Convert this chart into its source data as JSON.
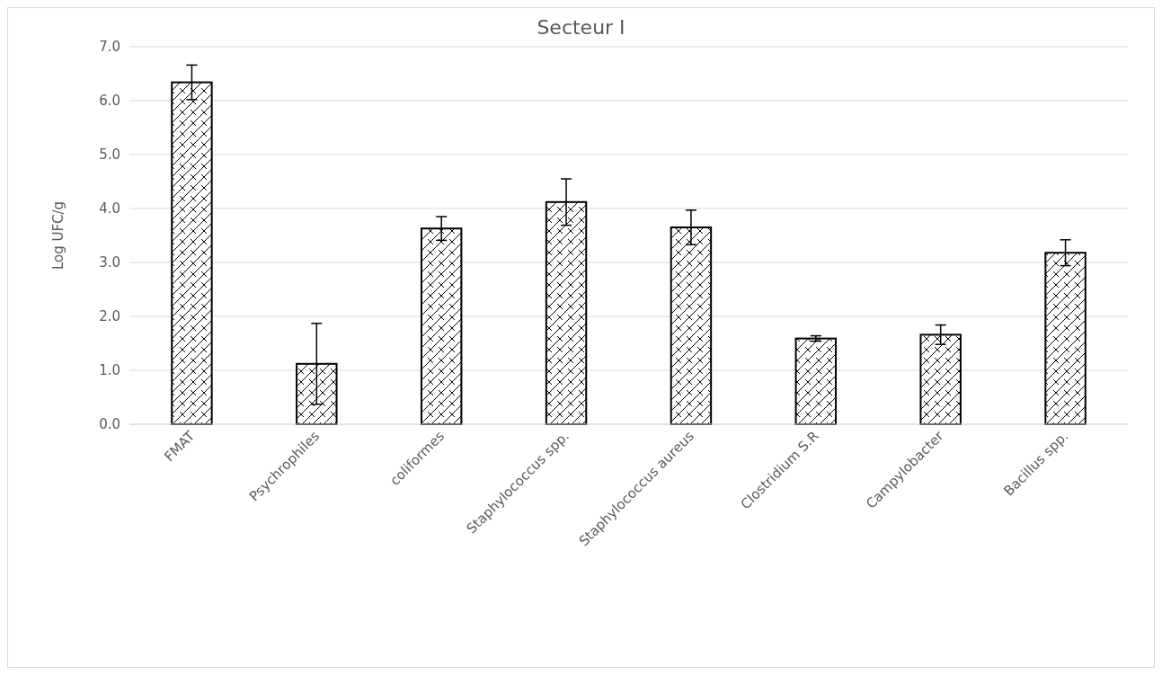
{
  "chart_data": {
    "type": "bar",
    "title": "Secteur I",
    "ylabel": "Log UFC/g",
    "categories": [
      "FMAT",
      "Psychrophiles",
      "coliformes",
      "Staphylococcus spp.",
      "Staphylococcus aureus",
      "Clostridium S.R",
      "Campylobacter",
      "Bacillus spp."
    ],
    "values": [
      6.34,
      1.12,
      3.63,
      4.12,
      3.65,
      1.59,
      1.66,
      3.18
    ],
    "errors": [
      0.32,
      0.75,
      0.22,
      0.43,
      0.32,
      0.05,
      0.18,
      0.24
    ],
    "color": "#000000",
    "ylim": [
      0,
      7
    ],
    "yticks": [
      {
        "value": 0,
        "label": "0.0"
      },
      {
        "value": 1,
        "label": "1.0"
      },
      {
        "value": 2,
        "label": "2.0"
      },
      {
        "value": 3,
        "label": "3.0"
      },
      {
        "value": 4,
        "label": "4.0"
      },
      {
        "value": 5,
        "label": "5.0"
      },
      {
        "value": 6,
        "label": "6.0"
      },
      {
        "value": 7,
        "label": "7.0"
      }
    ],
    "grid": "y"
  }
}
